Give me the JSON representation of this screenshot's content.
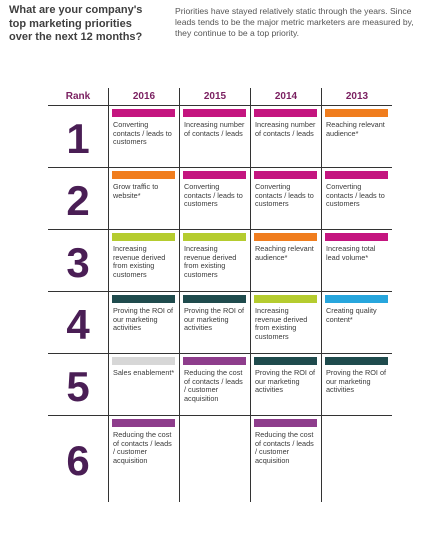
{
  "question": "What are your company's top marketing priorities over the next 12 months?",
  "intro": "Priorities have stayed relatively static through the years. Since leads tends to be the major metric marketers are measured by, they continue to be a top priority.",
  "headers": {
    "rank": "Rank",
    "years": [
      "2016",
      "2015",
      "2014",
      "2013"
    ]
  },
  "colors": {
    "magenta": "#c4157f",
    "orange": "#f07d1e",
    "lime": "#b5cc2f",
    "teal": "#1f4b4d",
    "sky": "#27a6dd",
    "gray": "#d7d7d7",
    "purple": "#8e3d8c"
  },
  "rows": [
    {
      "rank": "1",
      "cells": [
        {
          "color": "magenta",
          "text": "Converting contacts / leads to customers"
        },
        {
          "color": "magenta",
          "text": "Increasing number of contacts / leads"
        },
        {
          "color": "magenta",
          "text": "Increasing number of contacts / leads"
        },
        {
          "color": "orange",
          "text": "Reaching relevant audience*"
        }
      ]
    },
    {
      "rank": "2",
      "cells": [
        {
          "color": "orange",
          "text": "Grow traffic to website*"
        },
        {
          "color": "magenta",
          "text": "Converting contacts / leads to customers"
        },
        {
          "color": "magenta",
          "text": "Converting contacts / leads to customers"
        },
        {
          "color": "magenta",
          "text": "Converting contacts / leads to customers"
        }
      ]
    },
    {
      "rank": "3",
      "cells": [
        {
          "color": "lime",
          "text": "Increasing revenue derived from existing customers"
        },
        {
          "color": "lime",
          "text": "Increasing revenue derived from existing customers"
        },
        {
          "color": "orange",
          "text": "Reaching relevant audience*"
        },
        {
          "color": "magenta",
          "text": "Increasing total lead volume*"
        }
      ]
    },
    {
      "rank": "4",
      "cells": [
        {
          "color": "teal",
          "text": "Proving the ROI of our marketing activities"
        },
        {
          "color": "teal",
          "text": "Proving the ROI of our marketing activities"
        },
        {
          "color": "lime",
          "text": "Increasing revenue derived from existing customers"
        },
        {
          "color": "sky",
          "text": "Creating quality content*"
        }
      ]
    },
    {
      "rank": "5",
      "cells": [
        {
          "color": "gray",
          "text": "Sales enablement*"
        },
        {
          "color": "purple",
          "text": "Reducing the cost of contacts / leads / customer acquisition"
        },
        {
          "color": "teal",
          "text": "Proving the ROI of our marketing activities"
        },
        {
          "color": "teal",
          "text": "Proving the ROI of our marketing activities"
        }
      ]
    },
    {
      "rank": "6",
      "cells": [
        {
          "color": "purple",
          "text": "Reducing the cost of contacts / leads / customer acquisition"
        },
        null,
        {
          "color": "purple",
          "text": "Reducing the cost of contacts / leads / customer acquisition"
        },
        null
      ]
    }
  ]
}
